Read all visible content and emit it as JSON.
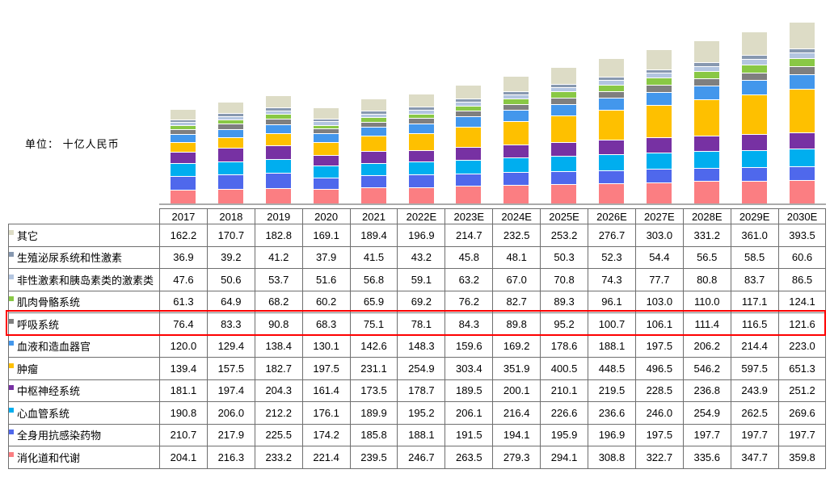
{
  "page": {
    "unit_label": "单位： 十亿人民币"
  },
  "chart_data": {
    "type": "bar",
    "subtype": "stacked-vertical",
    "title": "",
    "unit": "十亿人民币",
    "xlabel": "",
    "ylabel": "",
    "grid": false,
    "legend_position": "table-left-column",
    "axis_line_color": "#ababab",
    "highlight": {
      "series_name": "呼吸系统",
      "color": "#fe0000"
    },
    "categories": [
      "2017",
      "2018",
      "2019",
      "2020",
      "2021",
      "2022E",
      "2023E",
      "2024E",
      "2025E",
      "2026E",
      "2027E",
      "2028E",
      "2029E",
      "2030E"
    ],
    "series": [
      {
        "name": "其它",
        "color": "#dddcc6",
        "values": [
          162.2,
          170.7,
          182.8,
          169.1,
          189.4,
          196.9,
          214.7,
          232.5,
          253.2,
          276.7,
          303.0,
          331.2,
          361.0,
          393.5
        ]
      },
      {
        "name": "生殖泌尿系统和性激素",
        "color": "#8798b0",
        "values": [
          36.9,
          39.2,
          41.2,
          37.9,
          41.5,
          43.2,
          45.8,
          48.1,
          50.3,
          52.3,
          54.4,
          56.5,
          58.5,
          60.6
        ]
      },
      {
        "name": "非性激素和胰岛素类的激素类",
        "color": "#b3c5e0",
        "values": [
          47.6,
          50.6,
          53.7,
          51.6,
          56.8,
          59.1,
          63.2,
          67.0,
          70.8,
          74.3,
          77.7,
          80.8,
          83.7,
          86.5
        ]
      },
      {
        "name": "肌肉骨骼系统",
        "color": "#89c845",
        "values": [
          61.3,
          64.9,
          68.2,
          60.2,
          65.9,
          69.2,
          76.2,
          82.7,
          89.3,
          96.1,
          103.0,
          110.0,
          117.1,
          124.1
        ]
      },
      {
        "name": "呼吸系统",
        "color": "#7f7f7f",
        "values": [
          76.4,
          83.3,
          90.8,
          68.3,
          75.1,
          78.1,
          84.3,
          89.8,
          95.2,
          100.7,
          106.1,
          111.4,
          116.5,
          121.6
        ]
      },
      {
        "name": "血液和造血器官",
        "color": "#4397ec",
        "values": [
          120.0,
          129.4,
          138.4,
          130.1,
          142.6,
          148.3,
          159.6,
          169.2,
          178.6,
          188.1,
          197.5,
          206.2,
          214.4,
          223.0
        ]
      },
      {
        "name": "肿瘤",
        "color": "#fec000",
        "values": [
          139.4,
          157.5,
          182.7,
          197.5,
          231.1,
          254.9,
          303.4,
          351.9,
          400.5,
          448.5,
          496.5,
          546.2,
          597.5,
          651.3
        ]
      },
      {
        "name": "中枢神经系统",
        "color": "#7731a3",
        "values": [
          181.1,
          197.4,
          204.3,
          161.4,
          173.5,
          178.7,
          189.5,
          200.1,
          210.1,
          219.5,
          228.5,
          236.8,
          243.9,
          251.2
        ]
      },
      {
        "name": "心血管系统",
        "color": "#00aeef",
        "values": [
          190.8,
          206.0,
          212.2,
          176.1,
          189.9,
          195.2,
          206.1,
          216.4,
          226.6,
          236.6,
          246.0,
          254.9,
          262.5,
          269.6
        ]
      },
      {
        "name": "全身用抗感染药物",
        "color": "#4f68ec",
        "values": [
          210.7,
          217.9,
          225.5,
          174.2,
          185.8,
          188.1,
          191.5,
          194.1,
          195.9,
          196.9,
          197.5,
          197.7,
          197.7,
          197.7
        ]
      },
      {
        "name": "消化道和代谢",
        "color": "#fb7e82",
        "values": [
          204.1,
          216.3,
          233.2,
          221.4,
          239.5,
          246.7,
          263.5,
          279.3,
          294.1,
          308.8,
          322.7,
          335.6,
          347.7,
          359.8
        ]
      }
    ]
  }
}
